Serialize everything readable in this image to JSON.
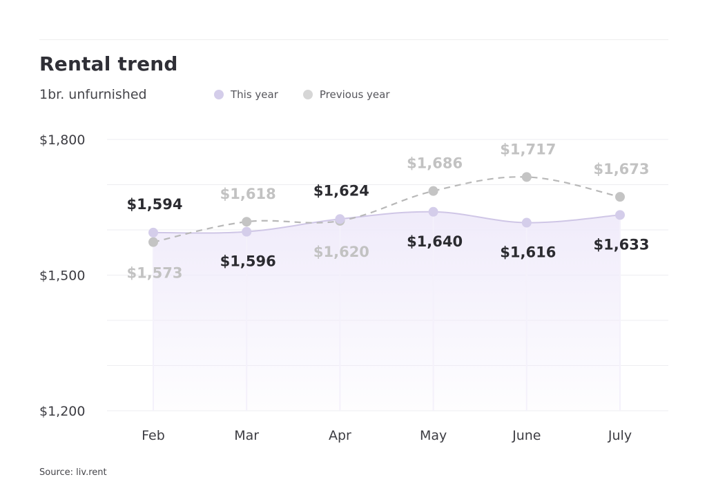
{
  "header": {
    "title": "Rental trend",
    "subtitle": "1br. unfurnished"
  },
  "legend": [
    {
      "label": "This year",
      "color": "#d4cdea"
    },
    {
      "label": "Previous year",
      "color": "#d6d6d6"
    }
  ],
  "source": "Source: liv.rent",
  "colors": {
    "this_year_point": "#d4cdea",
    "this_year_line": "#cfc6e6",
    "this_year_fill_top": "#efeafa",
    "previous_year_point": "#c4c4c4",
    "previous_year_line": "#b8b8b8",
    "this_year_label": "#2b2b30",
    "previous_year_label": "#c2c2c2",
    "grid": "#ededf0",
    "axis_text": "#3c3c42"
  },
  "chart_data": {
    "type": "line",
    "title": "Rental trend",
    "subtitle": "1br. unfurnished",
    "categories": [
      "Feb",
      "Mar",
      "Apr",
      "May",
      "June",
      "July"
    ],
    "series": [
      {
        "name": "This year",
        "values": [
          1594,
          1596,
          1624,
          1640,
          1616,
          1633
        ],
        "labels": [
          "$1,594",
          "$1,596",
          "$1,624",
          "$1,640",
          "$1,616",
          "$1,633"
        ]
      },
      {
        "name": "Previous year",
        "values": [
          1573,
          1618,
          1620,
          1686,
          1717,
          1673
        ],
        "labels": [
          "$1,573",
          "$1,618",
          "$1,620",
          "$1,686",
          "$1,717",
          "$1,673"
        ]
      }
    ],
    "y_ticks": [
      {
        "value": 1800,
        "label": "$1,800"
      },
      {
        "value": 1500,
        "label": "$1,500"
      },
      {
        "value": 1200,
        "label": "$1,200"
      }
    ],
    "ylim": [
      1200,
      1800
    ],
    "grid": true,
    "legend_position": "top"
  }
}
